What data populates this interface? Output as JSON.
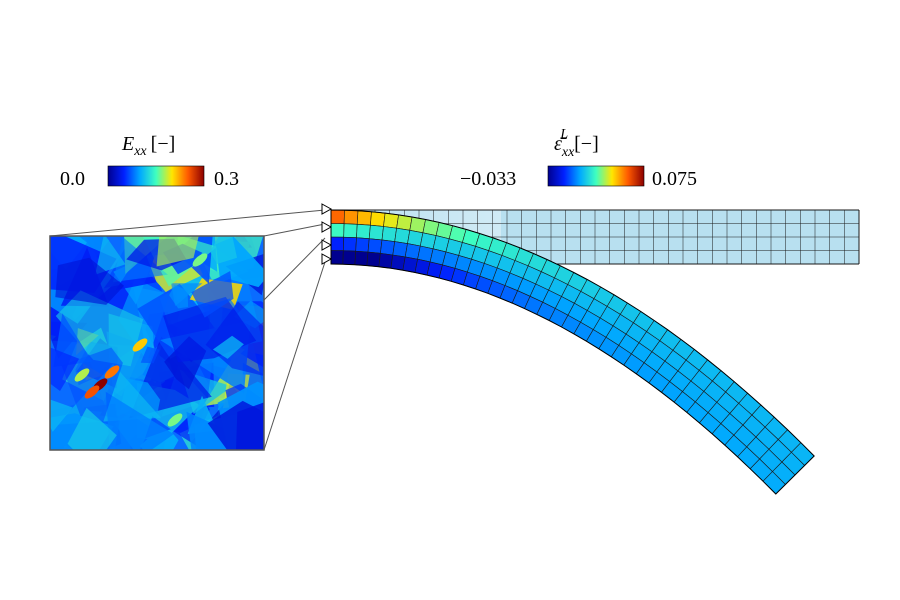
{
  "micro_legend": {
    "symbol": "E",
    "subscript": "xx",
    "unit": "[−]",
    "min_label": "0.0",
    "max_label": "0.3"
  },
  "macro_legend": {
    "symbol": "ε̄",
    "subscript": "xx",
    "superscript": "L",
    "unit": "[−]",
    "min_label": "−0.033",
    "max_label": "0.075"
  },
  "colormap": [
    "#00008f",
    "#0020ff",
    "#00a8ff",
    "#3fffc0",
    "#ffe600",
    "#ff5a00",
    "#8c0000"
  ],
  "mesh": {
    "undeformed_fill": "#b8e0f0",
    "line_color": "#1a1a1a",
    "columns": 36,
    "rows": 4
  },
  "micro_window": {
    "frame_color": "#555555"
  }
}
